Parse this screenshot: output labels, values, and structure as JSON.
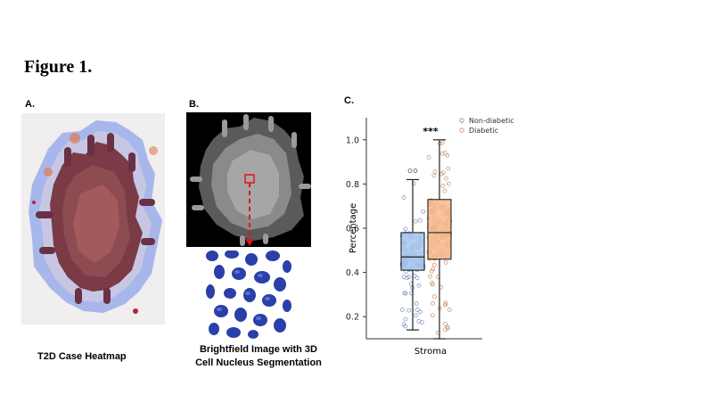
{
  "figure": {
    "title": "Figure 1."
  },
  "panel_a": {
    "label": "A.",
    "caption": "T2D Case Heatmap"
  },
  "panel_b": {
    "label": "B.",
    "caption_line1": "Brightfield Image with 3D",
    "caption_line2": "Cell Nucleus Segmentation"
  },
  "panel_c": {
    "label": "C.",
    "significance": "***"
  },
  "colors": {
    "heatmap_tissue": "#7a3b46",
    "heatmap_glow": "#9fb0ea",
    "arrow_red": "#e01515",
    "nucleus_blue": "#2a3fa8",
    "nondiabetic_box": "#a9c8ee",
    "diabetic_box": "#f7b88c"
  },
  "chart_data": {
    "type": "box",
    "xlabel": "Stroma",
    "ylabel": "Percentage",
    "ylim": [
      0.1,
      1.1
    ],
    "yticks": [
      0.2,
      0.4,
      0.6,
      0.8,
      1.0
    ],
    "ytick_labels": [
      "0.2",
      "0.4",
      "0.6",
      "0.8",
      "1.0"
    ],
    "legend_position": "top-right",
    "grid": false,
    "series": [
      {
        "name": "Non-diabetic",
        "min": 0.14,
        "q1": 0.41,
        "median": 0.47,
        "q3": 0.58,
        "max": 0.82,
        "outliers": [
          0.86,
          0.86
        ],
        "color": "#a9c8ee"
      },
      {
        "name": "Diabetic",
        "min": 0.1,
        "q1": 0.46,
        "median": 0.58,
        "q3": 0.73,
        "max": 1.0,
        "outliers": [],
        "color": "#f7b88c"
      }
    ]
  }
}
